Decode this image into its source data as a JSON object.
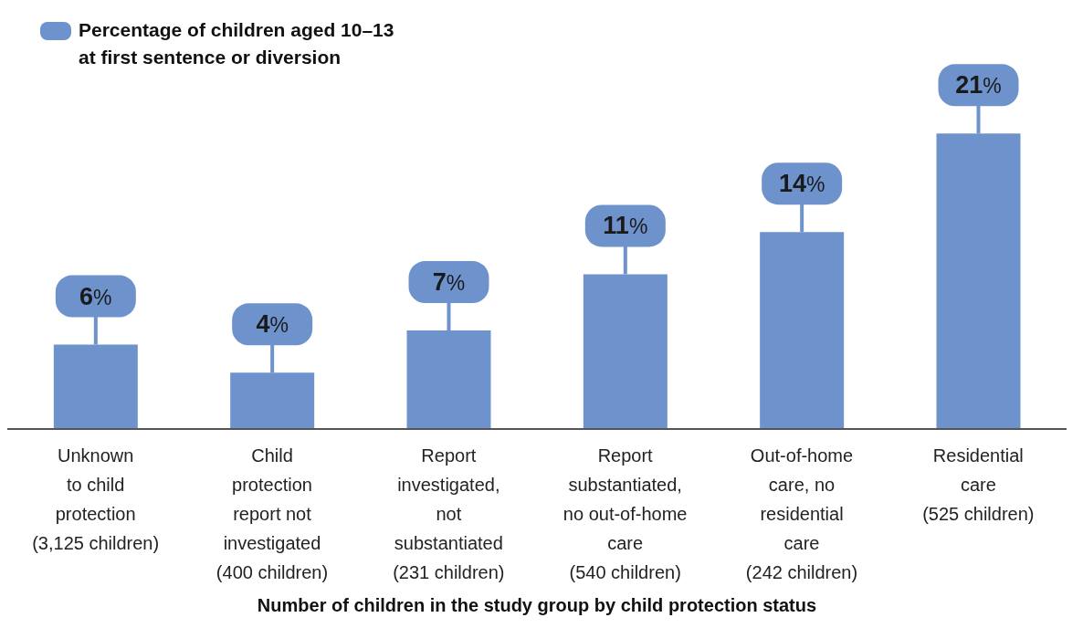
{
  "chart_data": {
    "type": "bar",
    "xlabel": "Number of children in the study group by child protection status",
    "categories": [
      "Unknown\nto child\nprotection\n(3,125 children)",
      "Child\nprotection\nreport not\ninvestigated\n(400 children)",
      "Report\ninvestigated,\nnot\nsubstantiated\n(231 children)",
      "Report\nsubstantiated,\nno out-of-home\ncare\n(540 children)",
      "Out-of-home\ncare, no\nresidential\ncare\n(242 children)",
      "Residential\ncare\n(525 children)"
    ],
    "series": [
      {
        "name": "Percentage of children aged 10–13\nat first sentence or diversion",
        "color": "#6e93cc",
        "values": [
          6,
          4,
          7,
          11,
          14,
          21
        ],
        "value_labels": [
          "6%",
          "4%",
          "7%",
          "11%",
          "14%",
          "21%"
        ]
      }
    ],
    "legend": "top left",
    "grid": false
  }
}
